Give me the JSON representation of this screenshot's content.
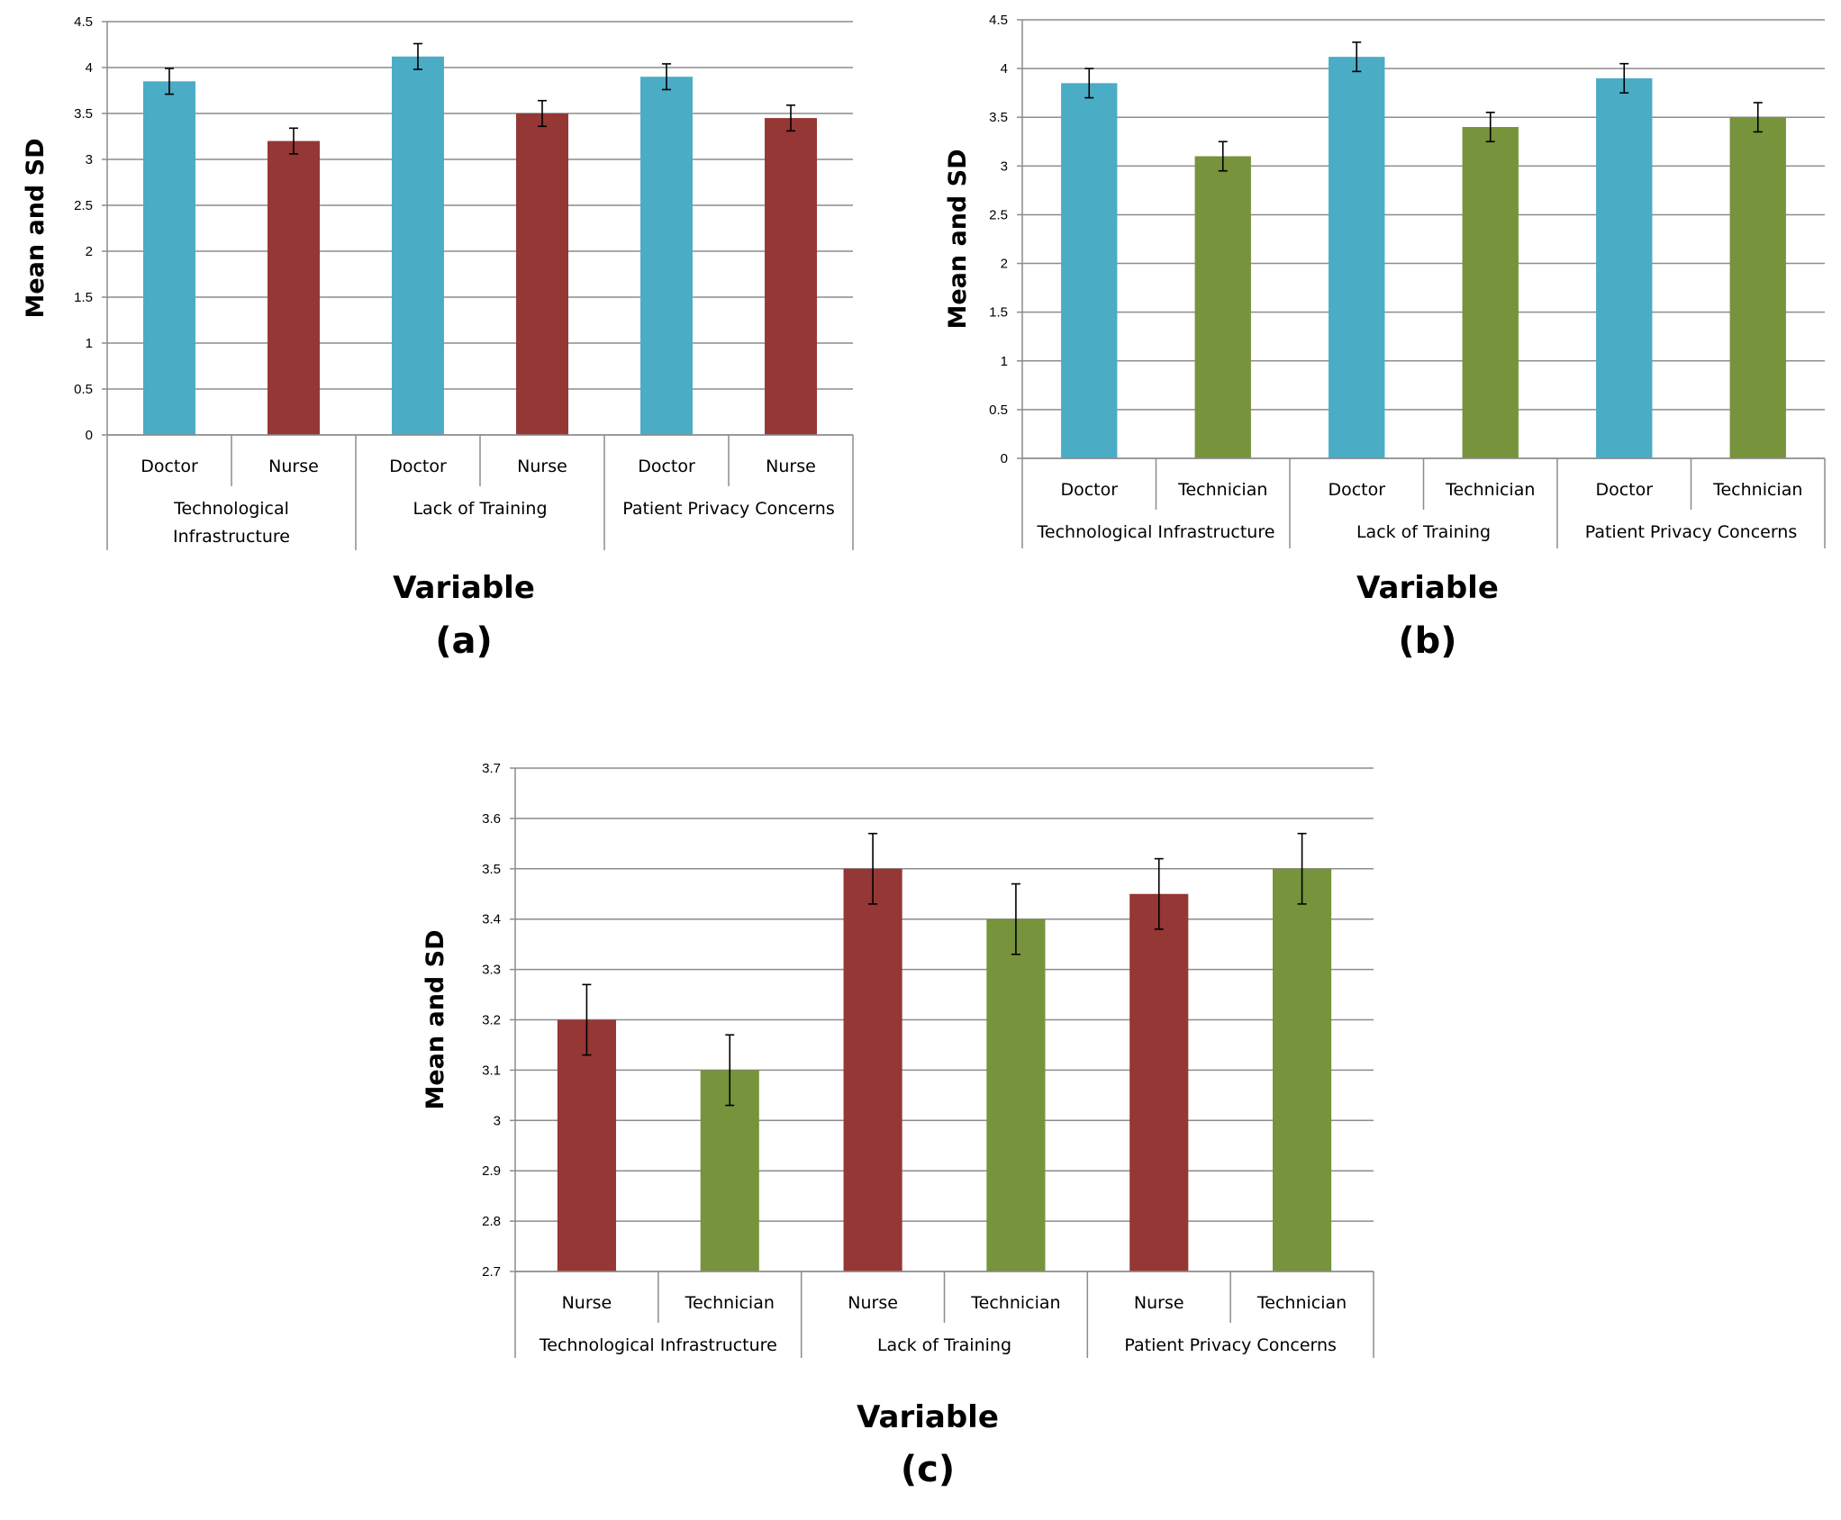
{
  "colors": {
    "Doctor": "#4bacc6",
    "Nurse": "#953735",
    "Technician": "#77933c",
    "grid": "#8c8c8c",
    "error_bar": "#000000"
  },
  "chart_data": [
    {
      "type": "bar",
      "panel_label": "(a)",
      "ylabel": "Mean and SD",
      "xlabel": "Variable",
      "ylim": [
        0,
        4.5
      ],
      "yticks": [
        "0",
        "0.5",
        "1",
        "1.5",
        "2",
        "2.5",
        "3",
        "3.5",
        "4",
        "4.5"
      ],
      "grid": true,
      "groups": [
        {
          "label": "Technological Infrastructure",
          "label_lines": [
            "Technological",
            "Infrastructure"
          ],
          "bars": [
            {
              "category": "Doctor",
              "value": 3.85,
              "sd": 0.14
            },
            {
              "category": "Nurse",
              "value": 3.2,
              "sd": 0.14
            }
          ]
        },
        {
          "label": "Lack of Training",
          "label_lines": [
            "Lack of Training"
          ],
          "bars": [
            {
              "category": "Doctor",
              "value": 4.12,
              "sd": 0.14
            },
            {
              "category": "Nurse",
              "value": 3.5,
              "sd": 0.14
            }
          ]
        },
        {
          "label": "Patient Privacy Concerns",
          "label_lines": [
            "Patient Privacy Concerns"
          ],
          "bars": [
            {
              "category": "Doctor",
              "value": 3.9,
              "sd": 0.14
            },
            {
              "category": "Nurse",
              "value": 3.45,
              "sd": 0.14
            }
          ]
        }
      ]
    },
    {
      "type": "bar",
      "panel_label": "(b)",
      "ylabel": "Mean and SD",
      "xlabel": "Variable",
      "ylim": [
        0,
        4.5
      ],
      "yticks": [
        "0",
        "0.5",
        "1",
        "1.5",
        "2",
        "2.5",
        "3",
        "3.5",
        "4",
        "4.5"
      ],
      "grid": true,
      "groups": [
        {
          "label": "Technological Infrastructure",
          "label_lines": [
            "Technological Infrastructure"
          ],
          "bars": [
            {
              "category": "Doctor",
              "value": 3.85,
              "sd": 0.15
            },
            {
              "category": "Technician",
              "value": 3.1,
              "sd": 0.15
            }
          ]
        },
        {
          "label": "Lack of Training",
          "label_lines": [
            "Lack of Training"
          ],
          "bars": [
            {
              "category": "Doctor",
              "value": 4.12,
              "sd": 0.15
            },
            {
              "category": "Technician",
              "value": 3.4,
              "sd": 0.15
            }
          ]
        },
        {
          "label": "Patient Privacy Concerns",
          "label_lines": [
            "Patient Privacy Concerns"
          ],
          "bars": [
            {
              "category": "Doctor",
              "value": 3.9,
              "sd": 0.15
            },
            {
              "category": "Technician",
              "value": 3.5,
              "sd": 0.15
            }
          ]
        }
      ]
    },
    {
      "type": "bar",
      "panel_label": "(c)",
      "ylabel": "Mean and SD",
      "xlabel": "Variable",
      "ylim": [
        2.7,
        3.7
      ],
      "yticks": [
        "2.7",
        "2.8",
        "2.9",
        "3",
        "3.1",
        "3.2",
        "3.3",
        "3.4",
        "3.5",
        "3.6",
        "3.7"
      ],
      "grid": true,
      "groups": [
        {
          "label": "Technological Infrastructure",
          "label_lines": [
            "Technological Infrastructure"
          ],
          "bars": [
            {
              "category": "Nurse",
              "value": 3.2,
              "sd": 0.07
            },
            {
              "category": "Technician",
              "value": 3.1,
              "sd": 0.07
            }
          ]
        },
        {
          "label": "Lack of Training",
          "label_lines": [
            "Lack of Training"
          ],
          "bars": [
            {
              "category": "Nurse",
              "value": 3.5,
              "sd": 0.07
            },
            {
              "category": "Technician",
              "value": 3.4,
              "sd": 0.07
            }
          ]
        },
        {
          "label": "Patient Privacy Concerns",
          "label_lines": [
            "Patient Privacy Concerns"
          ],
          "bars": [
            {
              "category": "Nurse",
              "value": 3.45,
              "sd": 0.07
            },
            {
              "category": "Technician",
              "value": 3.5,
              "sd": 0.07
            }
          ]
        }
      ]
    }
  ]
}
